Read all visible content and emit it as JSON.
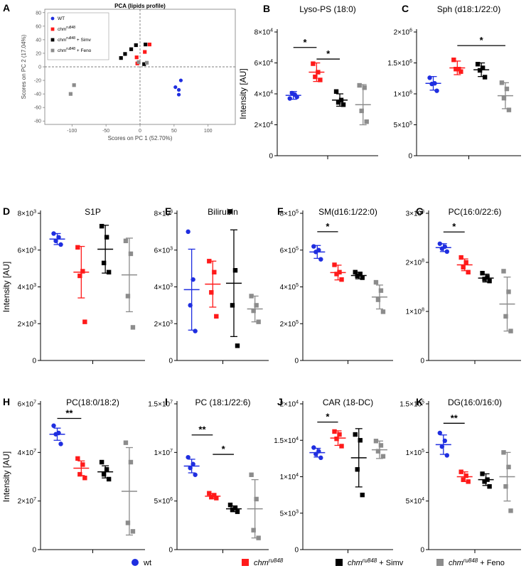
{
  "figure": {
    "legend": {
      "items": [
        {
          "label": "wt",
          "sup": "",
          "suffix": "",
          "color": "#1f2ee0",
          "italic": false,
          "shape": "circle"
        },
        {
          "label": "chm",
          "sup": "ru848",
          "suffix": "",
          "color": "#ff1a1a",
          "italic": true,
          "shape": "square"
        },
        {
          "label": "chm",
          "sup": "ru848",
          "suffix": " + Simv",
          "color": "#000000",
          "italic": true,
          "shape": "square"
        },
        {
          "label": "chm",
          "sup": "ru848",
          "suffix": " + Feno",
          "color": "#8c8c8c",
          "italic": true,
          "shape": "square"
        }
      ]
    },
    "colors": {
      "wt": "#1f2ee0",
      "chm": "#ff1a1a",
      "simv": "#000000",
      "feno": "#8c8c8c"
    }
  },
  "chart_data": [
    {
      "panel": "A",
      "type": "scatter",
      "title": "PCA (lipids profile)",
      "xlabel": "Scores on PC 1 (52.70%)",
      "ylabel": "Scores on PC 2 (17.04%)",
      "xlim": [
        -140,
        140
      ],
      "ylim": [
        -85,
        85
      ],
      "xticks": [
        -100,
        -50,
        0,
        50,
        100
      ],
      "yticks": [
        -80,
        -60,
        -40,
        -20,
        0,
        20,
        40,
        60,
        80
      ],
      "legend": [
        {
          "label": "WT",
          "sup": "",
          "suffix": ""
        },
        {
          "label": "chm",
          "sup": "ru848",
          "suffix": ""
        },
        {
          "label": "chm",
          "sup": "ru848",
          "suffix": " + Simv"
        },
        {
          "label": "chm",
          "sup": "ru848",
          "suffix": " + Feno"
        }
      ],
      "series": [
        {
          "group": "wt",
          "points": [
            [
              60,
              -20
            ],
            [
              52,
              -30
            ],
            [
              57,
              -34
            ],
            [
              57,
              -41
            ]
          ]
        },
        {
          "group": "chm",
          "points": [
            [
              14,
              33
            ],
            [
              -5,
              14
            ],
            [
              -4,
              5
            ],
            [
              7,
              22
            ]
          ]
        },
        {
          "group": "simv",
          "points": [
            [
              -6,
              32
            ],
            [
              -13,
              26
            ],
            [
              -22,
              19
            ],
            [
              -28,
              13
            ],
            [
              6,
              4
            ],
            [
              8,
              33
            ]
          ]
        },
        {
          "group": "feno",
          "points": [
            [
              -97,
              -27
            ],
            [
              -102,
              -40
            ],
            [
              10,
              6
            ],
            [
              -2,
              7
            ]
          ]
        }
      ]
    },
    {
      "panel": "B",
      "type": "scatter",
      "title": "Lyso-PS (18:0)",
      "ylabel": "Intensity [AU]",
      "ylim": [
        0,
        80000
      ],
      "yticks": [
        {
          "v": 0,
          "m": "0",
          "e": ""
        },
        {
          "v": 20000,
          "m": "2×10",
          "e": "4"
        },
        {
          "v": 40000,
          "m": "4×10",
          "e": "4"
        },
        {
          "v": 60000,
          "m": "6×10",
          "e": "4"
        },
        {
          "v": 80000,
          "m": "8×10",
          "e": "4"
        }
      ],
      "groups": [
        {
          "group": "wt",
          "mean": 39000,
          "sd": 2500,
          "points": [
            37000,
            39500,
            40500,
            38000
          ]
        },
        {
          "group": "chm",
          "mean": 54000,
          "sd": 6000,
          "points": [
            59500,
            54000,
            51000,
            49000
          ]
        },
        {
          "group": "simv",
          "mean": 36000,
          "sd": 4000,
          "points": [
            41500,
            36000,
            34500,
            33000
          ]
        },
        {
          "group": "feno",
          "mean": 33000,
          "sd": 13000,
          "points": [
            45500,
            44000,
            29000,
            22000
          ]
        }
      ],
      "sig": [
        {
          "g1": 0,
          "g2": 1,
          "y": 70000,
          "label": "*"
        },
        {
          "g1": 1,
          "g2": 2,
          "y": 62500,
          "label": "*"
        }
      ]
    },
    {
      "panel": "C",
      "type": "scatter",
      "title": "Sph (d18:1/22:0)",
      "ylabel": "",
      "ylim": [
        0,
        2000000
      ],
      "yticks": [
        {
          "v": 0,
          "m": "0",
          "e": ""
        },
        {
          "v": 500000,
          "m": "5×10",
          "e": "5"
        },
        {
          "v": 1000000,
          "m": "1×10",
          "e": "6"
        },
        {
          "v": 1500000,
          "m": "1.5×10",
          "e": "6"
        },
        {
          "v": 2000000,
          "m": "2×10",
          "e": "6"
        }
      ],
      "groups": [
        {
          "group": "wt",
          "mean": 1170000,
          "sd": 110000,
          "points": [
            1260000,
            1170000,
            1160000,
            1050000
          ]
        },
        {
          "group": "chm",
          "mean": 1420000,
          "sd": 110000,
          "points": [
            1550000,
            1400000,
            1400000,
            1360000
          ]
        },
        {
          "group": "simv",
          "mean": 1390000,
          "sd": 110000,
          "points": [
            1480000,
            1420000,
            1380000,
            1270000
          ]
        },
        {
          "group": "feno",
          "mean": 970000,
          "sd": 210000,
          "points": [
            1180000,
            1080000,
            930000,
            740000
          ]
        }
      ],
      "sig": [
        {
          "g1": 1,
          "g2": 3,
          "y": 1780000,
          "label": "*"
        }
      ]
    },
    {
      "panel": "D",
      "type": "scatter",
      "title": "S1P",
      "ylabel": "Intensity [AU]",
      "ylim": [
        0,
        8000
      ],
      "yticks": [
        {
          "v": 0,
          "m": "0",
          "e": ""
        },
        {
          "v": 2000,
          "m": "2×10",
          "e": "3"
        },
        {
          "v": 4000,
          "m": "4×10",
          "e": "3"
        },
        {
          "v": 6000,
          "m": "6×10",
          "e": "3"
        },
        {
          "v": 8000,
          "m": "8×10",
          "e": "3"
        }
      ],
      "groups": [
        {
          "group": "wt",
          "mean": 6600,
          "sd": 300,
          "points": [
            6900,
            6700,
            6500,
            6300
          ]
        },
        {
          "group": "chm",
          "mean": 4800,
          "sd": 1400,
          "points": [
            6150,
            4850,
            4600,
            2100
          ]
        },
        {
          "group": "simv",
          "mean": 6050,
          "sd": 1300,
          "points": [
            7300,
            6700,
            5300,
            4800
          ]
        },
        {
          "group": "feno",
          "mean": 4650,
          "sd": 2000,
          "points": [
            6500,
            5800,
            3500,
            1800
          ]
        }
      ],
      "sig": []
    },
    {
      "panel": "E",
      "type": "scatter",
      "title": "Bilirubin",
      "ylabel": "",
      "ylim": [
        0,
        8000
      ],
      "yticks": [
        {
          "v": 0,
          "m": "0",
          "e": ""
        },
        {
          "v": 2000,
          "m": "2×10",
          "e": "3"
        },
        {
          "v": 4000,
          "m": "4×10",
          "e": "3"
        },
        {
          "v": 6000,
          "m": "6×10",
          "e": "3"
        },
        {
          "v": 8000,
          "m": "8×10",
          "e": "3"
        }
      ],
      "groups": [
        {
          "group": "wt",
          "mean": 3850,
          "sd": 2200,
          "points": [
            7000,
            4400,
            3000,
            1600
          ]
        },
        {
          "group": "chm",
          "mean": 4150,
          "sd": 1250,
          "points": [
            5400,
            4800,
            3700,
            2400
          ]
        },
        {
          "group": "simv",
          "mean": 4200,
          "sd": 2900,
          "points": [
            8100,
            4900,
            3000,
            800
          ]
        },
        {
          "group": "feno",
          "mean": 2800,
          "sd": 700,
          "points": [
            3500,
            3000,
            2700,
            2100
          ]
        }
      ],
      "sig": []
    },
    {
      "panel": "F",
      "type": "scatter",
      "title": "SM(d16:1/22:0)",
      "ylabel": "",
      "ylim": [
        0,
        800000
      ],
      "yticks": [
        {
          "v": 0,
          "m": "0",
          "e": ""
        },
        {
          "v": 200000,
          "m": "2×10",
          "e": "5"
        },
        {
          "v": 400000,
          "m": "4×10",
          "e": "5"
        },
        {
          "v": 600000,
          "m": "6×10",
          "e": "5"
        },
        {
          "v": 800000,
          "m": "8×10",
          "e": "5"
        }
      ],
      "groups": [
        {
          "group": "wt",
          "mean": 590000,
          "sd": 35000,
          "points": [
            620000,
            600000,
            590000,
            550000
          ]
        },
        {
          "group": "chm",
          "mean": 478000,
          "sd": 40000,
          "points": [
            520000,
            480000,
            470000,
            440000
          ]
        },
        {
          "group": "simv",
          "mean": 462000,
          "sd": 18000,
          "points": [
            480000,
            470000,
            460000,
            450000
          ]
        },
        {
          "group": "feno",
          "mean": 345000,
          "sd": 65000,
          "points": [
            425000,
            380000,
            330000,
            265000
          ]
        }
      ],
      "sig": [
        {
          "g1": 0,
          "g2": 1,
          "y": 700000,
          "label": "*"
        }
      ]
    },
    {
      "panel": "G",
      "type": "scatter",
      "title": "PC(16:0/22:6)",
      "ylabel": "",
      "ylim": [
        0,
        300000000
      ],
      "yticks": [
        {
          "v": 0,
          "m": "0",
          "e": ""
        },
        {
          "v": 100000000,
          "m": "1×10",
          "e": "8"
        },
        {
          "v": 200000000,
          "m": "2×10",
          "e": "8"
        },
        {
          "v": 300000000,
          "m": "3×10",
          "e": "8"
        }
      ],
      "groups": [
        {
          "group": "wt",
          "mean": 230000000,
          "sd": 8000000,
          "points": [
            238000000,
            232000000,
            228000000,
            222000000
          ]
        },
        {
          "group": "chm",
          "mean": 195000000,
          "sd": 12000000,
          "points": [
            210000000,
            200000000,
            190000000,
            180000000
          ]
        },
        {
          "group": "simv",
          "mean": 168000000,
          "sd": 8000000,
          "points": [
            178000000,
            170000000,
            166000000,
            162000000
          ]
        },
        {
          "group": "feno",
          "mean": 115000000,
          "sd": 55000000,
          "points": [
            182000000,
            140000000,
            90000000,
            60000000
          ]
        }
      ],
      "sig": [
        {
          "g1": 0,
          "g2": 1,
          "y": 262000000,
          "label": "*"
        }
      ]
    },
    {
      "panel": "H",
      "type": "scatter",
      "title": "PC(18:0/18:2)",
      "ylabel": "Intensity [AU]",
      "ylim": [
        0,
        60000000
      ],
      "yticks": [
        {
          "v": 0,
          "m": "0",
          "e": ""
        },
        {
          "v": 20000000,
          "m": "2×10",
          "e": "7"
        },
        {
          "v": 40000000,
          "m": "4×10",
          "e": "7"
        },
        {
          "v": 60000000,
          "m": "6×10",
          "e": "7"
        }
      ],
      "groups": [
        {
          "group": "wt",
          "mean": 47500000,
          "sd": 2500000,
          "points": [
            51000000,
            48000000,
            47500000,
            43500000
          ]
        },
        {
          "group": "chm",
          "mean": 33500000,
          "sd": 3000000,
          "points": [
            37500000,
            35000000,
            31000000,
            29500000
          ]
        },
        {
          "group": "simv",
          "mean": 32000000,
          "sd": 2500000,
          "points": [
            36000000,
            33000000,
            31000000,
            29000000
          ]
        },
        {
          "group": "feno",
          "mean": 24000000,
          "sd": 18000000,
          "points": [
            44000000,
            36000000,
            11000000,
            7500000
          ]
        }
      ],
      "sig": [
        {
          "g1": 0,
          "g2": 1,
          "y": 54000000,
          "label": "**"
        }
      ]
    },
    {
      "panel": "I",
      "type": "scatter",
      "title": "PC (18:1/22:6)",
      "ylabel": "",
      "ylim": [
        0,
        15000000
      ],
      "yticks": [
        {
          "v": 0,
          "m": "0",
          "e": ""
        },
        {
          "v": 5000000,
          "m": "5×10",
          "e": "6"
        },
        {
          "v": 10000000,
          "m": "1×10",
          "e": "7"
        },
        {
          "v": 15000000,
          "m": "1.5×10",
          "e": "7"
        }
      ],
      "groups": [
        {
          "group": "wt",
          "mean": 8600000,
          "sd": 700000,
          "points": [
            9500000,
            8800000,
            8400000,
            7700000
          ]
        },
        {
          "group": "chm",
          "mean": 5500000,
          "sd": 250000,
          "points": [
            5800000,
            5600000,
            5400000,
            5300000
          ]
        },
        {
          "group": "simv",
          "mean": 4200000,
          "sd": 300000,
          "points": [
            4600000,
            4300000,
            4100000,
            3900000
          ]
        },
        {
          "group": "feno",
          "mean": 4200000,
          "sd": 3000000,
          "points": [
            7700000,
            5200000,
            2000000,
            1200000
          ]
        }
      ],
      "sig": [
        {
          "g1": 0,
          "g2": 1,
          "y": 11800000,
          "label": "**"
        },
        {
          "g1": 1,
          "g2": 2,
          "y": 9800000,
          "label": "*"
        }
      ]
    },
    {
      "panel": "J",
      "type": "scatter",
      "title": "CAR (18-DC)",
      "ylabel": "",
      "ylim": [
        0,
        20000
      ],
      "yticks": [
        {
          "v": 0,
          "m": "0",
          "e": ""
        },
        {
          "v": 5000,
          "m": "5×10",
          "e": "3"
        },
        {
          "v": 10000,
          "m": "1×10",
          "e": "4"
        },
        {
          "v": 15000,
          "m": "1.5×10",
          "e": "4"
        },
        {
          "v": 20000,
          "m": "2×10",
          "e": "4"
        }
      ],
      "groups": [
        {
          "group": "wt",
          "mean": 13300.0,
          "sd": 600,
          "points": [
            14000,
            13500,
            13100,
            12600
          ]
        },
        {
          "group": "chm",
          "mean": 15300,
          "sd": 1000,
          "points": [
            16200,
            15800,
            15200,
            14200
          ]
        },
        {
          "group": "simv",
          "mean": 12600,
          "sd": 4000,
          "points": [
            15800,
            15000,
            11000,
            7500
          ]
        },
        {
          "group": "feno",
          "mean": 13700,
          "sd": 1200,
          "points": [
            14900,
            14300,
            13500,
            12800
          ]
        }
      ],
      "sig": [
        {
          "g1": 0,
          "g2": 1,
          "y": 17500,
          "label": "*"
        }
      ]
    },
    {
      "panel": "K",
      "type": "scatter",
      "title": "DG(16:0/16:0)",
      "ylabel": "",
      "ylim": [
        0,
        150000
      ],
      "yticks": [
        {
          "v": 0,
          "m": "0",
          "e": ""
        },
        {
          "v": 50000,
          "m": "5×10",
          "e": "4"
        },
        {
          "v": 100000,
          "m": "1×10",
          "e": "5"
        },
        {
          "v": 150000,
          "m": "1.5×10",
          "e": "5"
        }
      ],
      "groups": [
        {
          "group": "wt",
          "mean": 108000,
          "sd": 10000,
          "points": [
            120000,
            112000,
            106000,
            97000
          ]
        },
        {
          "group": "chm",
          "mean": 75000,
          "sd": 5000,
          "points": [
            80000,
            76000,
            72000,
            70000
          ]
        },
        {
          "group": "simv",
          "mean": 72000,
          "sd": 6000,
          "points": [
            78000,
            72000,
            70000,
            65000
          ]
        },
        {
          "group": "feno",
          "mean": 75000,
          "sd": 25000,
          "points": [
            100000,
            85000,
            65000,
            40000
          ]
        }
      ],
      "sig": [
        {
          "g1": 0,
          "g2": 1,
          "y": 130000,
          "label": "**"
        }
      ]
    }
  ]
}
